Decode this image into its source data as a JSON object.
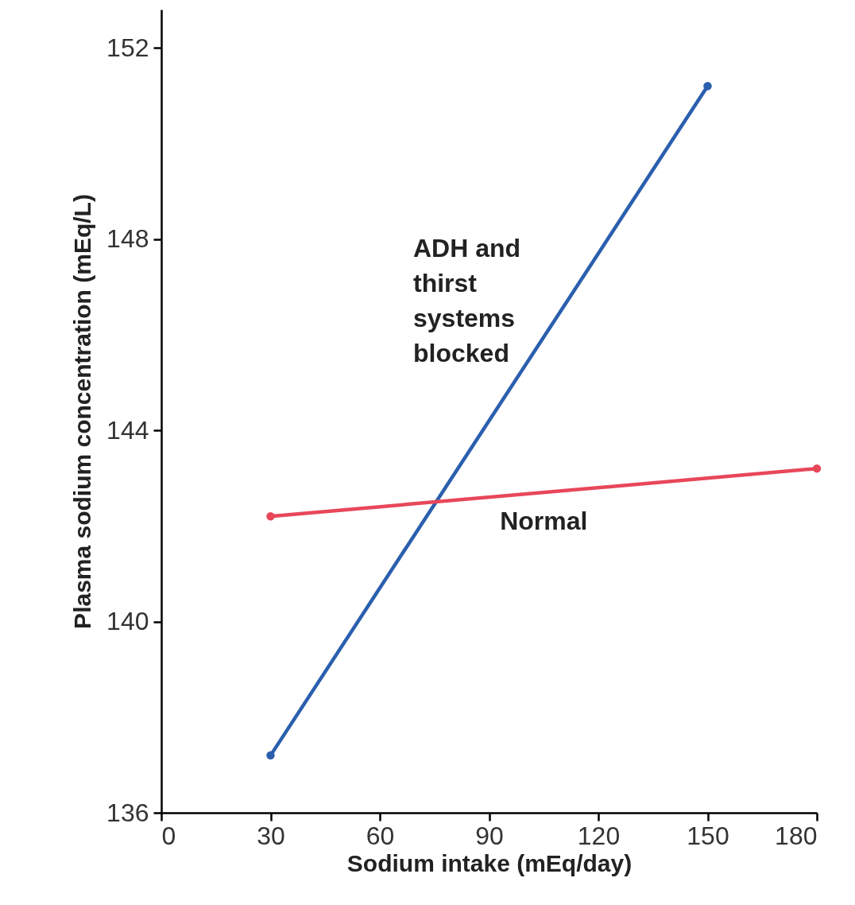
{
  "chart_data": {
    "type": "line",
    "xlabel": "Sodium intake (mEq/day)",
    "ylabel": "Plasma sodium concentration (mEq/L)",
    "xlim": [
      0,
      180
    ],
    "xticks": [
      0,
      30,
      60,
      90,
      120,
      150,
      180
    ],
    "ylim": [
      136,
      152.8
    ],
    "yticks": [
      136,
      140,
      144,
      148,
      152
    ],
    "grid": false,
    "marker": "circle",
    "series": [
      {
        "name": "ADH and thirst systems blocked",
        "color": "#2b5fae",
        "x": [
          30,
          150
        ],
        "values": [
          137.2,
          151.2
        ]
      },
      {
        "name": "Normal",
        "color": "#e8475a",
        "x": [
          30,
          180
        ],
        "values": [
          142.2,
          143.2
        ]
      }
    ]
  }
}
